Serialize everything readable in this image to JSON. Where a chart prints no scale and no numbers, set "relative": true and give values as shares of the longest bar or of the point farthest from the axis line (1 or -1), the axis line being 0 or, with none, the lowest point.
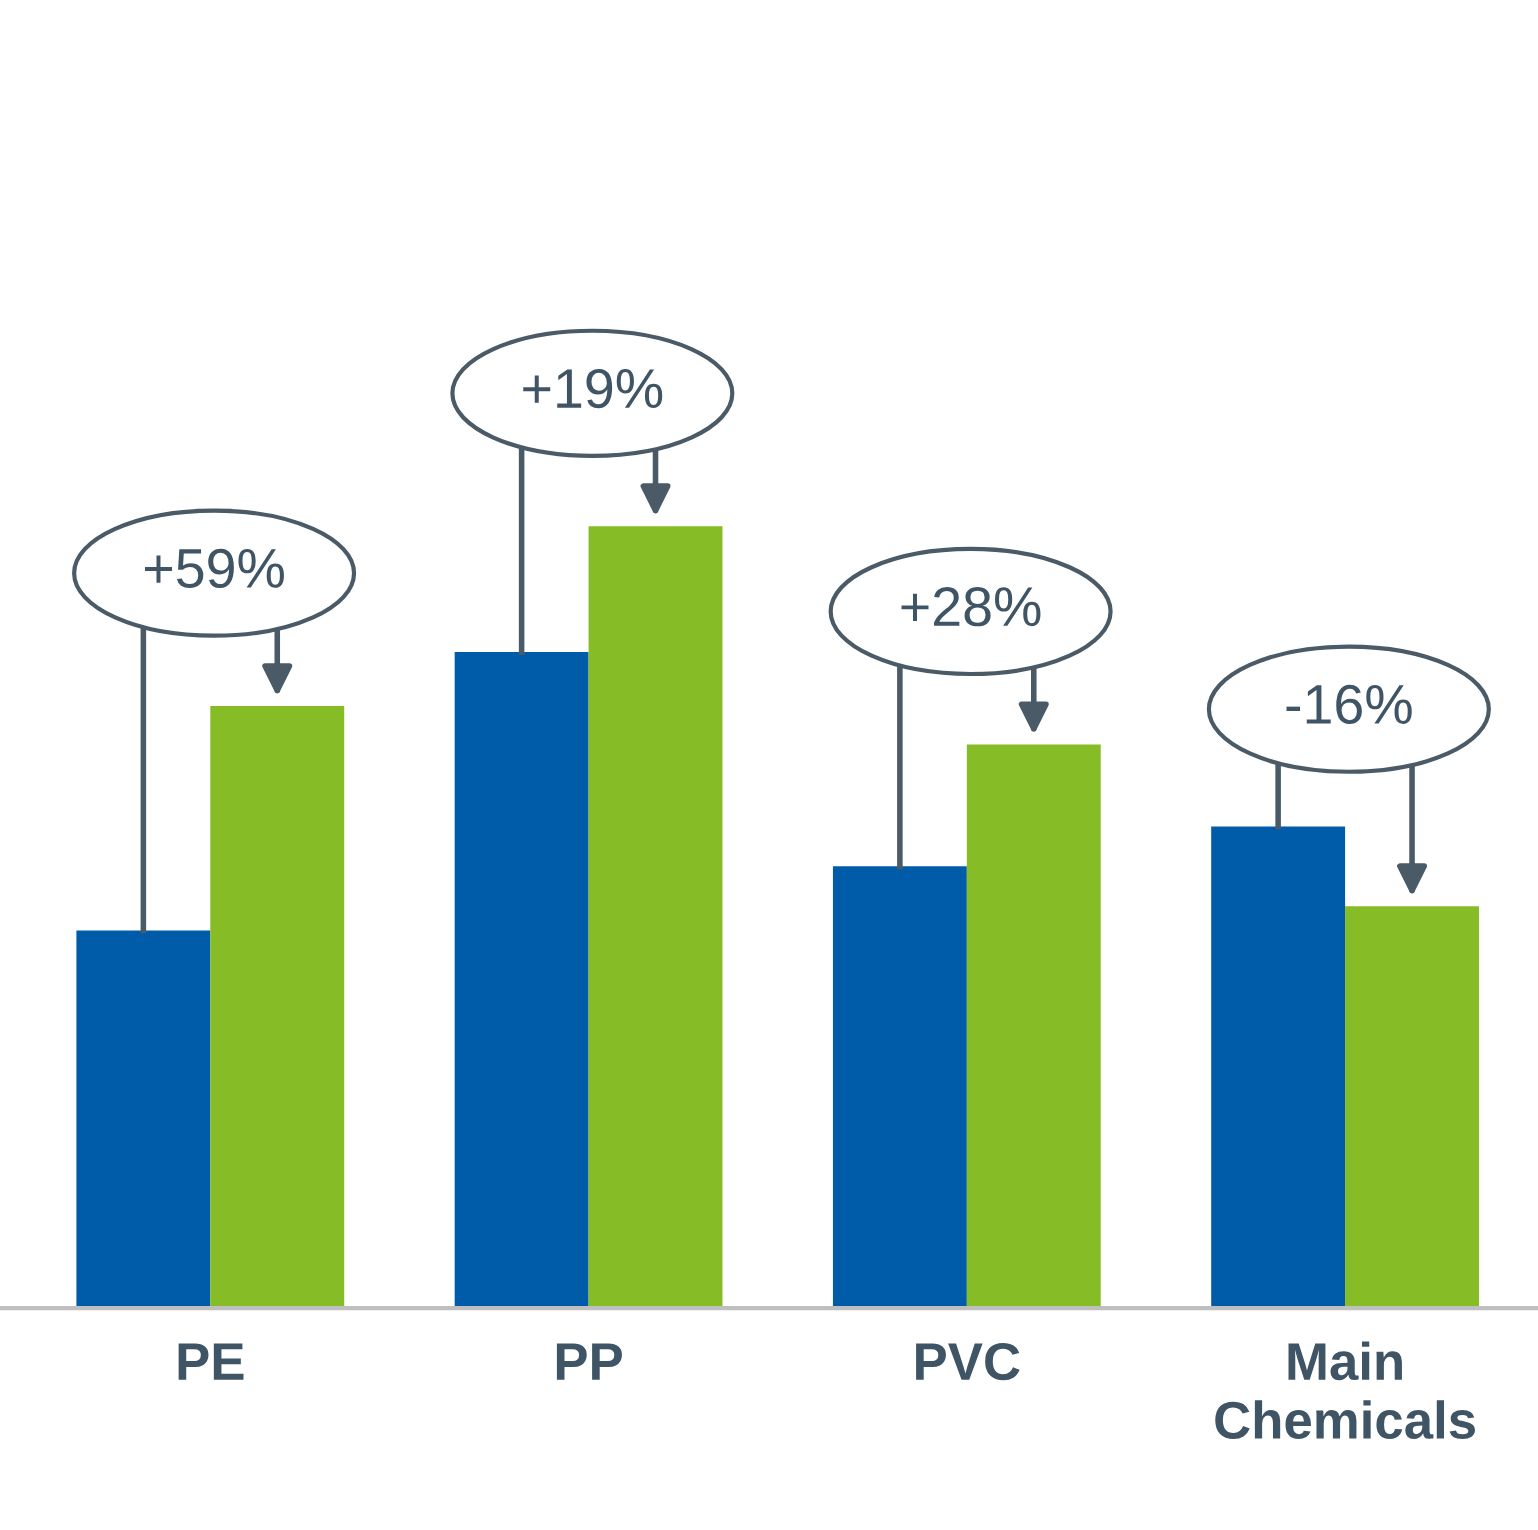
{
  "chart_data": {
    "type": "bar",
    "relative": true,
    "categories": [
      "PE",
      "PP",
      "PVC",
      "Main\nChemicals"
    ],
    "series": [
      {
        "color": "#005ca9",
        "values": [
          0.483,
          0.839,
          0.565,
          0.616
        ]
      },
      {
        "color": "#86bc25",
        "values": [
          0.77,
          1.0,
          0.721,
          0.514
        ]
      }
    ],
    "annotations": [
      "+59%",
      "+19%",
      "+28%",
      "-16%"
    ],
    "grid": false,
    "legend": false
  }
}
